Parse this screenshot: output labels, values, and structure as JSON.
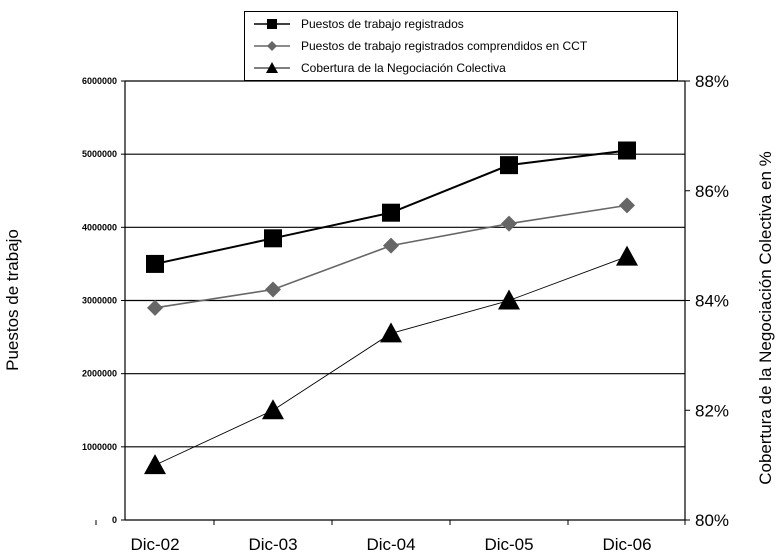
{
  "chart_data": {
    "type": "line",
    "categories": [
      "Dic-02",
      "Dic-03",
      "Dic-04",
      "Dic-05",
      "Dic-06"
    ],
    "ylabel_left": "Puestos de trabajo",
    "ylabel_right": "Cobertura de la Negociación Colectiva en %",
    "ylim_left": [
      0,
      6000000
    ],
    "ylim_right": [
      0.8,
      0.88
    ],
    "yticks_left": [
      "0",
      "1000000",
      "2000000",
      "3000000",
      "4000000",
      "5000000",
      "6000000"
    ],
    "yticks_right": [
      "80%",
      "82%",
      "84%",
      "86%",
      "88%"
    ],
    "grid": true,
    "legend": "top",
    "series": [
      {
        "name": "Puestos de trabajo registrados",
        "axis": "left",
        "marker": "square",
        "color": "#000000",
        "values": [
          3500000,
          3850000,
          4200000,
          4850000,
          5050000
        ]
      },
      {
        "name": "Puestos de trabajo registrados comprendidos en CCT",
        "axis": "left",
        "marker": "diamond",
        "color": "#666666",
        "values": [
          2900000,
          3150000,
          3750000,
          4050000,
          4300000
        ]
      },
      {
        "name": "Cobertura de la Negociación Colectiva",
        "axis": "right",
        "marker": "triangle",
        "color": "#000000",
        "values": [
          0.81,
          0.82,
          0.834,
          0.84,
          0.848
        ]
      }
    ]
  }
}
